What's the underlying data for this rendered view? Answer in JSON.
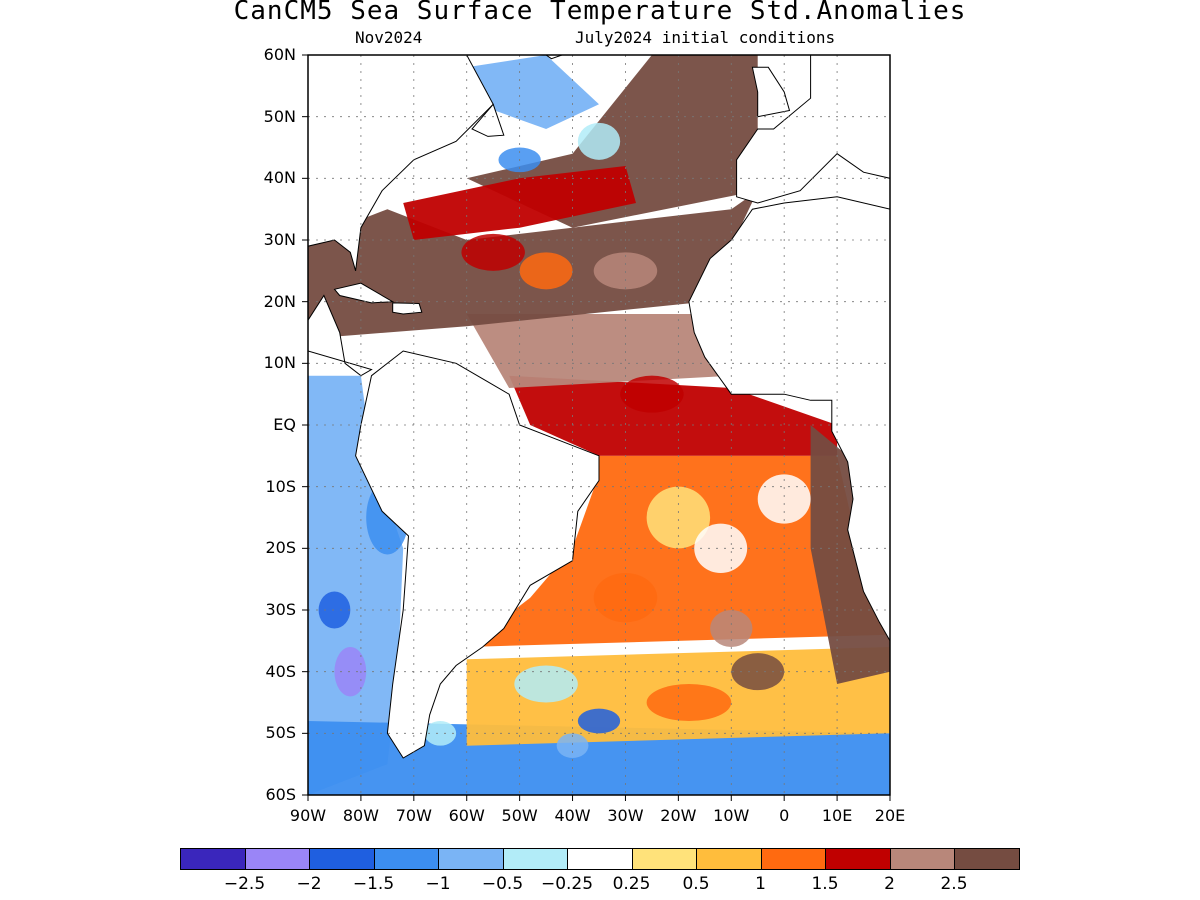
{
  "title": "CanCM5 Sea Surface Temperature Std.Anomalies",
  "valid_month": "Nov2024",
  "init_label": "July2024 initial conditions",
  "lat_labels": [
    "60N",
    "50N",
    "40N",
    "30N",
    "20N",
    "10N",
    "EQ",
    "10S",
    "20S",
    "30S",
    "40S",
    "50S",
    "60S"
  ],
  "lon_labels": [
    "90W",
    "80W",
    "70W",
    "60W",
    "50W",
    "40W",
    "30W",
    "20W",
    "10W",
    "0",
    "10E",
    "20E"
  ],
  "map_extent": {
    "lon_min": -90,
    "lon_max": 20,
    "lat_min": -60,
    "lat_max": 60
  },
  "colorbar": {
    "colors": [
      "#3a26bc",
      "#9a85f7",
      "#1f5fe0",
      "#3c8ef0",
      "#7ab4f5",
      "#b2ecf8",
      "#ffffff",
      "#ffe27a",
      "#ffbd3c",
      "#ff6a10",
      "#c00000",
      "#b8877a",
      "#754c41"
    ],
    "labels": [
      "-2.5",
      "-2",
      "-1.5",
      "-1",
      "-0.5",
      "-0.25",
      "0.25",
      "0.5",
      "1",
      "1.5",
      "2",
      "2.5"
    ]
  },
  "land_color": "#ffffff",
  "ocean_field": {
    "default_level": 6,
    "regions": [
      {
        "name": "north-atlantic-subtropical",
        "level": 12
      },
      {
        "name": "north-atlantic-midlat",
        "level": 12
      },
      {
        "name": "gulf-stream-band",
        "level": 10
      },
      {
        "name": "labrador-sea",
        "level": 4
      },
      {
        "name": "equatorial-atlantic",
        "level": 10
      },
      {
        "name": "tropical-north-atlantic",
        "level": 11
      },
      {
        "name": "south-atlantic-subtropical",
        "level": 9
      },
      {
        "name": "benguela-region",
        "level": 12
      },
      {
        "name": "southeast-pacific",
        "level": 4
      },
      {
        "name": "southern-ocean",
        "level": 3
      },
      {
        "name": "south-atlantic-south",
        "level": 8
      }
    ]
  }
}
